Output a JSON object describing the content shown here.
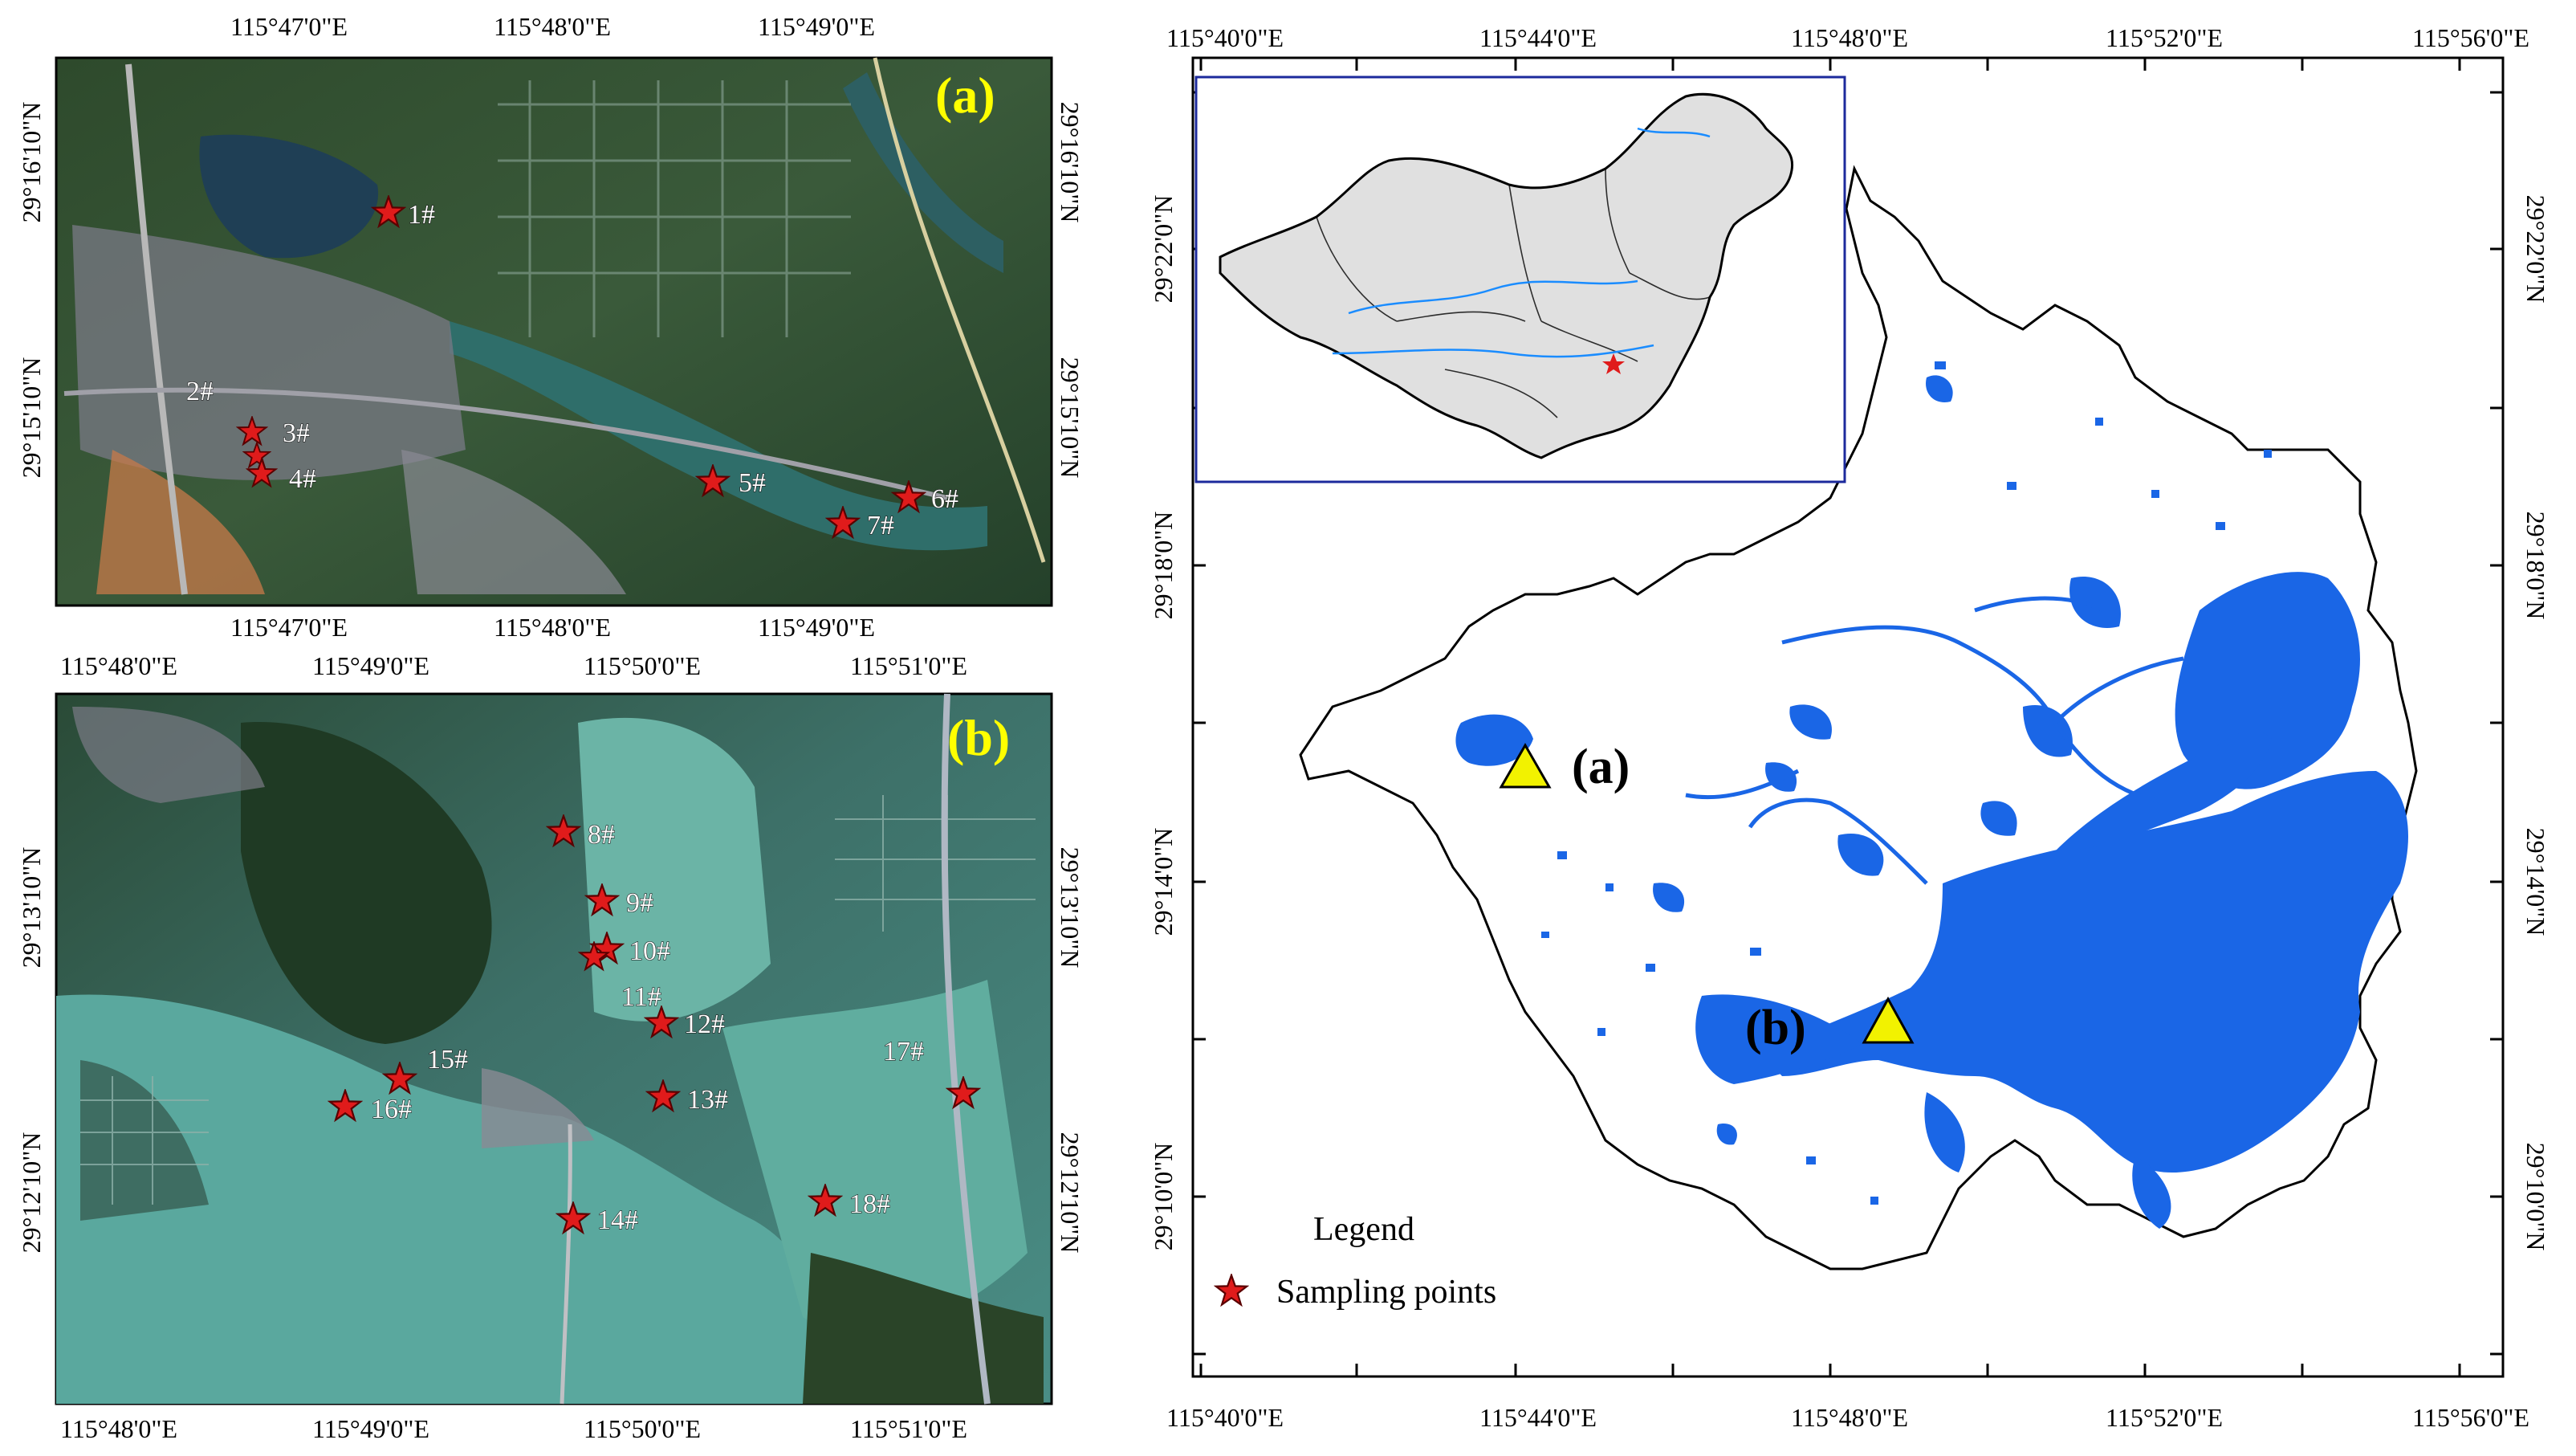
{
  "panel_a": {
    "tag": "(a)",
    "top_ticks": [
      "115°47'0\"E",
      "115°48'0\"E",
      "115°49'0\"E"
    ],
    "bottom_ticks": [
      "115°47'0\"E",
      "115°48'0\"E",
      "115°49'0\"E"
    ],
    "left_ticks": [
      "29°16'10\"N",
      "29°15'10\"N"
    ],
    "right_ticks": [
      "29°16'10\"N",
      "29°15'10\"N"
    ],
    "points": [
      "1#",
      "2#",
      "3#",
      "4#",
      "5#",
      "6#",
      "7#"
    ]
  },
  "panel_b": {
    "tag": "(b)",
    "top_ticks": [
      "115°48'0\"E",
      "115°49'0\"E",
      "115°50'0\"E",
      "115°51'0\"E"
    ],
    "bottom_ticks": [
      "115°48'0\"E",
      "115°49'0\"E",
      "115°50'0\"E",
      "115°51'0\"E"
    ],
    "left_ticks": [
      "29°13'10\"N",
      "29°12'10\"N"
    ],
    "right_ticks": [
      "29°13'10\"N",
      "29°12'10\"N"
    ],
    "points": [
      "8#",
      "9#",
      "10#",
      "11#",
      "12#",
      "13#",
      "14#",
      "15#",
      "16#",
      "17#",
      "18#"
    ]
  },
  "main_map": {
    "top_ticks": [
      "115°40'0\"E",
      "115°44'0\"E",
      "115°48'0\"E",
      "115°52'0\"E",
      "115°56'0\"E"
    ],
    "bottom_ticks": [
      "115°40'0\"E",
      "115°44'0\"E",
      "115°48'0\"E",
      "115°52'0\"E",
      "115°56'0\"E"
    ],
    "left_ticks": [
      "29°22'0\"N",
      "29°18'0\"N",
      "29°14'0\"N",
      "29°10'0\"N"
    ],
    "right_ticks": [
      "29°22'0\"N",
      "29°18'0\"N",
      "29°14'0\"N",
      "29°10'0\"N"
    ],
    "site_a_label": "(a)",
    "site_b_label": "(b)"
  },
  "legend": {
    "title": "Legend",
    "item_label": "Sampling points"
  },
  "colors": {
    "water_blue": "#1a66e6",
    "sampling_star": "#e01b1b",
    "site_triangle": "#f2f200",
    "panel_tag": "#ffff00",
    "inset_border": "#1c2a9c"
  },
  "icons": {
    "sampling_point": "red-star-icon",
    "site_marker": "yellow-triangle-icon"
  }
}
